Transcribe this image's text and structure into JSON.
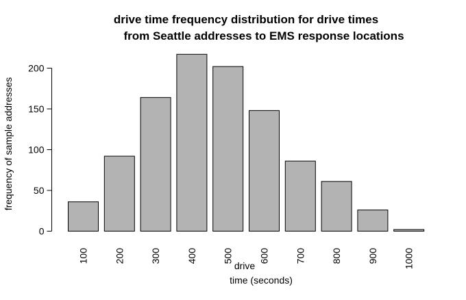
{
  "chart_data": {
    "type": "bar",
    "title_lines": [
      "drive time frequency distribution for drive times",
      "from Seattle addresses to EMS response locations"
    ],
    "xlabel_lines": [
      "drive",
      "time (seconds)"
    ],
    "ylabel": "frequency of sample addresses",
    "categories": [
      "100",
      "200",
      "300",
      "400",
      "500",
      "600",
      "700",
      "800",
      "900",
      "1000"
    ],
    "values": [
      36,
      92,
      164,
      217,
      202,
      148,
      86,
      61,
      26,
      2
    ],
    "ylim": [
      0,
      200
    ],
    "yticks": [
      0,
      50,
      100,
      150,
      200
    ],
    "bar_color": "#b3b3b3",
    "grid": false,
    "legend": "none"
  }
}
